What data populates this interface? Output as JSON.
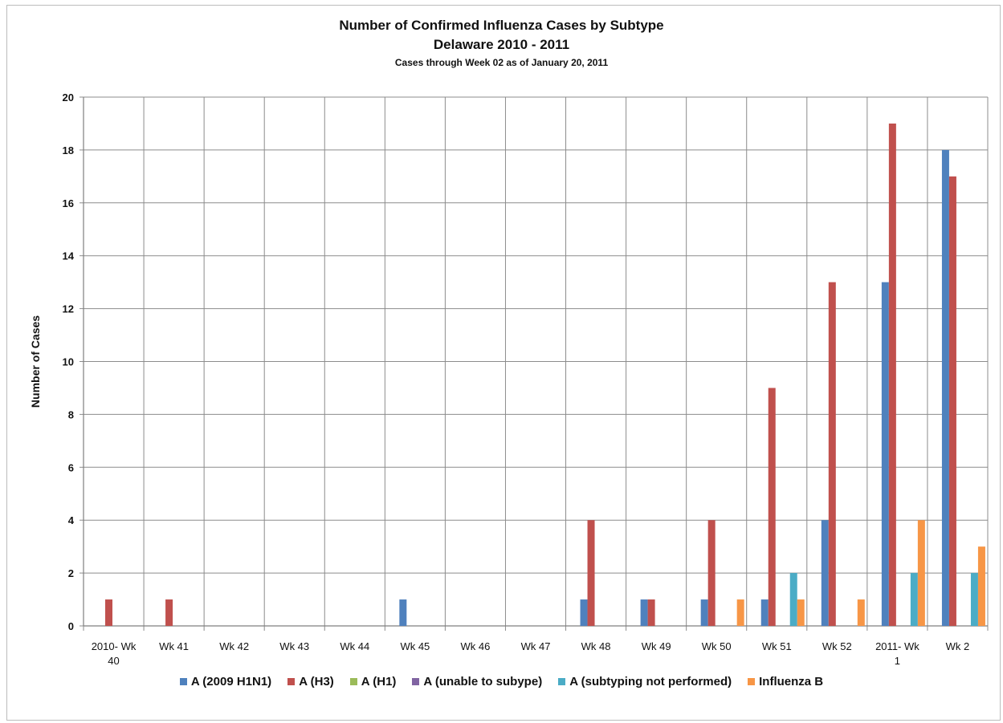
{
  "chart_data": {
    "type": "bar",
    "title": "Number of Confirmed Influenza Cases by Subtype",
    "subtitle": "Delaware 2010 - 2011",
    "subtitle2": "Cases through Week 02 as of January 20, 2011",
    "xlabel": "",
    "ylabel": "Number of Cases",
    "ylim": [
      0,
      20
    ],
    "yticks": [
      "0",
      "2",
      "4",
      "6",
      "8",
      "10",
      "12",
      "14",
      "16",
      "18",
      "20"
    ],
    "grid": true,
    "legend_position": "bottom",
    "categories": [
      "2010- Wk 40",
      "Wk 41",
      "Wk 42",
      "Wk 43",
      "Wk 44",
      "Wk 45",
      "Wk 46",
      "Wk 47",
      "Wk 48",
      "Wk 49",
      "Wk 50",
      "Wk 51",
      "Wk 52",
      "2011- Wk 1",
      "Wk 2"
    ],
    "category_lines": [
      [
        "2010- Wk",
        "40"
      ],
      [
        "Wk 41"
      ],
      [
        "Wk 42"
      ],
      [
        "Wk 43"
      ],
      [
        "Wk 44"
      ],
      [
        "Wk 45"
      ],
      [
        "Wk 46"
      ],
      [
        "Wk 47"
      ],
      [
        "Wk 48"
      ],
      [
        "Wk 49"
      ],
      [
        "Wk 50"
      ],
      [
        "Wk 51"
      ],
      [
        "Wk 52"
      ],
      [
        "2011- Wk",
        "1"
      ],
      [
        "Wk 2"
      ]
    ],
    "series": [
      {
        "name": "A (2009 H1N1)",
        "color": "#4f81bd",
        "values": [
          0,
          0,
          0,
          0,
          0,
          1,
          0,
          0,
          1,
          1,
          1,
          1,
          4,
          13,
          18
        ]
      },
      {
        "name": "A (H3)",
        "color": "#c0504d",
        "values": [
          1,
          1,
          0,
          0,
          0,
          0,
          0,
          0,
          4,
          1,
          4,
          9,
          13,
          19,
          17
        ]
      },
      {
        "name": "A (H1)",
        "color": "#9bbb59",
        "values": [
          0,
          0,
          0,
          0,
          0,
          0,
          0,
          0,
          0,
          0,
          0,
          0,
          0,
          0,
          0
        ]
      },
      {
        "name": "A (unable to subype)",
        "color": "#8064a2",
        "values": [
          0,
          0,
          0,
          0,
          0,
          0,
          0,
          0,
          0,
          0,
          0,
          0,
          0,
          0,
          0
        ]
      },
      {
        "name": "A (subtyping not performed)",
        "color": "#4bacc6",
        "values": [
          0,
          0,
          0,
          0,
          0,
          0,
          0,
          0,
          0,
          0,
          0,
          2,
          0,
          2,
          2
        ]
      },
      {
        "name": "Influenza B",
        "color": "#f79646",
        "values": [
          0,
          0,
          0,
          0,
          0,
          0,
          0,
          0,
          0,
          0,
          1,
          1,
          1,
          4,
          3
        ]
      }
    ]
  }
}
